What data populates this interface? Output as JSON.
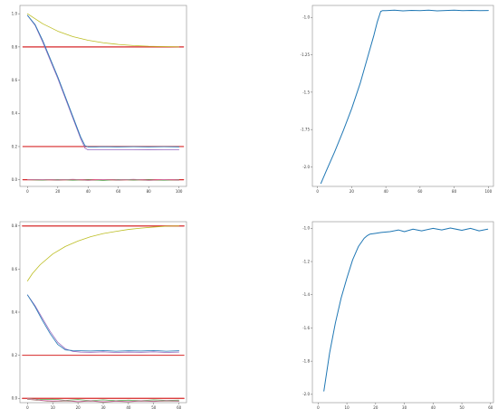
{
  "chart_data": [
    {
      "type": "line",
      "panel": "top-left",
      "xlim": [
        -5,
        105
      ],
      "ylim": [
        -0.04,
        1.05
      ],
      "xticks": [
        0,
        20,
        40,
        60,
        80,
        100
      ],
      "yticks": [
        0.0,
        0.2,
        0.4,
        0.6,
        0.8,
        1.0
      ],
      "xtick_labels": [
        "0",
        "20",
        "40",
        "60",
        "80",
        "100"
      ],
      "ytick_labels": [
        "0.0",
        "0.2",
        "0.4",
        "0.6",
        "0.8",
        "1.0"
      ],
      "series": [
        {
          "color": "#d62728",
          "width": 1.2,
          "x": [
            -3,
            103
          ],
          "y": [
            0.8,
            0.8
          ]
        },
        {
          "color": "#d62728",
          "width": 1.2,
          "x": [
            -3,
            103
          ],
          "y": [
            0.2,
            0.2
          ]
        },
        {
          "color": "#d62728",
          "width": 1.2,
          "x": [
            -3,
            103
          ],
          "y": [
            0.0,
            0.0
          ]
        },
        {
          "color": "#bcbd22",
          "width": 0.8,
          "x": [
            0,
            10,
            20,
            30,
            40,
            50,
            60,
            70,
            80,
            90,
            100
          ],
          "y": [
            1.0,
            0.94,
            0.895,
            0.862,
            0.84,
            0.825,
            0.815,
            0.808,
            0.804,
            0.802,
            0.8
          ]
        },
        {
          "color": "#9467bd",
          "width": 0.8,
          "x": [
            0,
            5,
            10,
            15,
            20,
            25,
            30,
            35,
            38,
            40,
            45,
            50,
            60,
            70,
            80,
            90,
            100
          ],
          "y": [
            0.99,
            0.93,
            0.83,
            0.72,
            0.61,
            0.49,
            0.37,
            0.25,
            0.19,
            0.18,
            0.18,
            0.18,
            0.18,
            0.18,
            0.181,
            0.18,
            0.18
          ]
        },
        {
          "color": "#1f77b4",
          "width": 0.8,
          "x": [
            0,
            5,
            10,
            15,
            20,
            25,
            30,
            35,
            38,
            40,
            45,
            50,
            60,
            70,
            80,
            90,
            100
          ],
          "y": [
            0.99,
            0.935,
            0.84,
            0.73,
            0.62,
            0.5,
            0.38,
            0.26,
            0.205,
            0.198,
            0.198,
            0.199,
            0.198,
            0.199,
            0.198,
            0.199,
            0.198
          ]
        },
        {
          "color": "#8c564b",
          "width": 0.6,
          "x": [
            0,
            10,
            20,
            30,
            40,
            50,
            60,
            70,
            80,
            90,
            100
          ],
          "y": [
            0.0,
            0.001,
            -0.003,
            0.002,
            -0.004,
            0.001,
            -0.003,
            0.002,
            -0.004,
            0.0,
            -0.003
          ]
        },
        {
          "color": "#2ca02c",
          "width": 0.6,
          "x": [
            0,
            10,
            20,
            30,
            40,
            50,
            60,
            70,
            80,
            90,
            100
          ],
          "y": [
            0.0,
            -0.002,
            0.002,
            -0.003,
            0.001,
            -0.004,
            0.002,
            -0.002,
            0.001,
            -0.003,
            0.001
          ]
        },
        {
          "color": "#e377c2",
          "width": 0.6,
          "x": [
            0,
            10,
            20,
            30,
            40,
            50,
            60,
            70,
            80,
            90,
            100
          ],
          "y": [
            0.0,
            0.002,
            -0.001,
            0.003,
            -0.002,
            0.002,
            -0.001,
            0.003,
            -0.002,
            0.001,
            -0.001
          ]
        }
      ]
    },
    {
      "type": "line",
      "panel": "top-right",
      "xlim": [
        -3,
        103
      ],
      "ylim": [
        -2.13,
        -0.92
      ],
      "xticks": [
        0,
        20,
        40,
        60,
        80,
        100
      ],
      "yticks": [
        -2.0,
        -1.75,
        -1.5,
        -1.25,
        -1.0
      ],
      "xtick_labels": [
        "0",
        "20",
        "40",
        "60",
        "80",
        "100"
      ],
      "ytick_labels": [
        "-2.0",
        "-1.75",
        "-1.5",
        "-1.25",
        "-1.0"
      ],
      "series": [
        {
          "color": "#1f77b4",
          "width": 1.0,
          "x": [
            2,
            5,
            10,
            15,
            20,
            25,
            30,
            33,
            35,
            37,
            38,
            40,
            45,
            50,
            55,
            60,
            65,
            70,
            75,
            80,
            85,
            90,
            95,
            100
          ],
          "y": [
            -2.11,
            -2.03,
            -1.9,
            -1.76,
            -1.61,
            -1.44,
            -1.24,
            -1.12,
            -1.03,
            -0.96,
            -0.955,
            -0.955,
            -0.952,
            -0.956,
            -0.953,
            -0.955,
            -0.952,
            -0.956,
            -0.954,
            -0.952,
            -0.955,
            -0.953,
            -0.955,
            -0.954
          ]
        }
      ]
    },
    {
      "type": "line",
      "panel": "bottom-left",
      "xlim": [
        -3,
        63
      ],
      "ylim": [
        -0.02,
        0.82
      ],
      "xticks": [
        0,
        10,
        20,
        30,
        40,
        50,
        60
      ],
      "yticks": [
        0.0,
        0.2,
        0.4,
        0.6,
        0.8
      ],
      "xtick_labels": [
        "0",
        "10",
        "20",
        "30",
        "40",
        "50",
        "60"
      ],
      "ytick_labels": [
        "0.0",
        "0.2",
        "0.4",
        "0.6",
        "0.8"
      ],
      "series": [
        {
          "color": "#d62728",
          "width": 1.2,
          "x": [
            -2,
            62
          ],
          "y": [
            0.8,
            0.8
          ]
        },
        {
          "color": "#d62728",
          "width": 1.0,
          "x": [
            -2,
            62
          ],
          "y": [
            0.2,
            0.2
          ]
        },
        {
          "color": "#d62728",
          "width": 1.2,
          "x": [
            -2,
            62
          ],
          "y": [
            0.0,
            0.0
          ]
        },
        {
          "color": "#bcbd22",
          "width": 0.8,
          "x": [
            0,
            2,
            5,
            10,
            15,
            20,
            25,
            30,
            35,
            40,
            45,
            50,
            55,
            60
          ],
          "y": [
            0.545,
            0.58,
            0.62,
            0.67,
            0.705,
            0.73,
            0.75,
            0.765,
            0.775,
            0.784,
            0.79,
            0.795,
            0.799,
            0.8
          ]
        },
        {
          "color": "#9467bd",
          "width": 0.8,
          "x": [
            0,
            3,
            6,
            9,
            12,
            15,
            18,
            21,
            25,
            30,
            35,
            40,
            45,
            50,
            55,
            60
          ],
          "y": [
            0.48,
            0.43,
            0.37,
            0.31,
            0.26,
            0.23,
            0.218,
            0.215,
            0.214,
            0.216,
            0.213,
            0.215,
            0.214,
            0.216,
            0.213,
            0.215
          ]
        },
        {
          "color": "#1f77b4",
          "width": 0.8,
          "x": [
            0,
            3,
            6,
            9,
            12,
            15,
            18,
            21,
            25,
            30,
            35,
            40,
            45,
            50,
            55,
            60
          ],
          "y": [
            0.48,
            0.425,
            0.36,
            0.3,
            0.25,
            0.225,
            0.222,
            0.221,
            0.22,
            0.222,
            0.219,
            0.221,
            0.22,
            0.222,
            0.219,
            0.221
          ]
        },
        {
          "color": "#8c564b",
          "width": 0.6,
          "x": [
            0,
            5,
            10,
            15,
            20,
            25,
            30,
            35,
            40,
            45,
            50,
            55,
            60
          ],
          "y": [
            -0.005,
            -0.01,
            -0.015,
            -0.012,
            -0.016,
            -0.013,
            -0.017,
            -0.014,
            -0.016,
            -0.013,
            -0.015,
            -0.012,
            -0.014
          ]
        },
        {
          "color": "#2ca02c",
          "width": 0.6,
          "x": [
            0,
            5,
            10,
            15,
            20,
            25,
            30,
            35,
            40,
            45,
            50,
            55,
            60
          ],
          "y": [
            0.0,
            -0.006,
            -0.004,
            -0.009,
            -0.006,
            -0.01,
            -0.007,
            -0.011,
            -0.008,
            -0.01,
            -0.007,
            -0.009,
            -0.008
          ]
        },
        {
          "color": "#e377c2",
          "width": 0.6,
          "x": [
            0,
            5,
            10,
            15,
            20,
            25,
            30,
            35,
            40,
            45,
            50,
            55,
            60
          ],
          "y": [
            0.0,
            -0.008,
            -0.012,
            -0.01,
            -0.014,
            -0.011,
            -0.015,
            -0.012,
            -0.014,
            -0.011,
            -0.013,
            -0.01,
            -0.012
          ]
        }
      ]
    },
    {
      "type": "line",
      "panel": "bottom-right",
      "xlim": [
        -2,
        61
      ],
      "ylim": [
        -2.05,
        -0.96
      ],
      "xticks": [
        0,
        10,
        20,
        30,
        40,
        50,
        60
      ],
      "yticks": [
        -2.0,
        -1.8,
        -1.6,
        -1.4,
        -1.2,
        -1.0
      ],
      "xtick_labels": [
        "0",
        "10",
        "20",
        "30",
        "40",
        "50",
        "60"
      ],
      "ytick_labels": [
        "-2.0",
        "-1.8",
        "-1.6",
        "-1.4",
        "-1.2",
        "-1.0"
      ],
      "series": [
        {
          "color": "#1f77b4",
          "width": 1.0,
          "x": [
            2,
            4,
            6,
            8,
            10,
            12,
            14,
            16,
            17,
            18,
            20,
            22,
            25,
            28,
            30,
            33,
            36,
            40,
            43,
            46,
            50,
            53,
            56,
            59
          ],
          "y": [
            -1.98,
            -1.75,
            -1.57,
            -1.42,
            -1.3,
            -1.19,
            -1.11,
            -1.06,
            -1.045,
            -1.035,
            -1.03,
            -1.025,
            -1.02,
            -1.01,
            -1.02,
            -1.005,
            -1.015,
            -1.0,
            -1.01,
            -0.998,
            -1.012,
            -1.0,
            -1.015,
            -1.005
          ]
        }
      ]
    }
  ]
}
